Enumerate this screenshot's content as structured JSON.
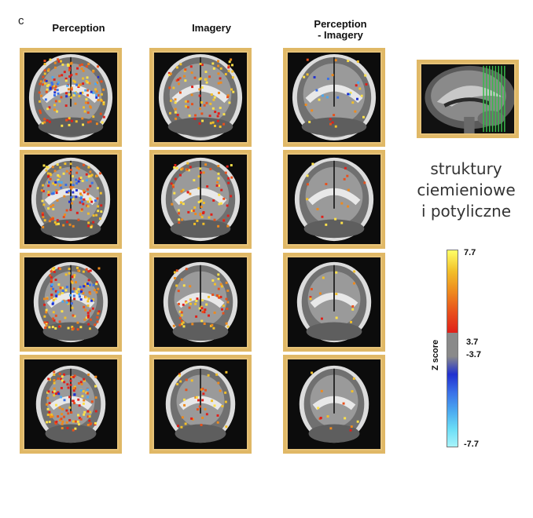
{
  "panel_letter": "c",
  "columns": [
    "Perception",
    "Imagery",
    "Perception\n- Imagery"
  ],
  "side_text": [
    "struktury",
    "ciemieniowe",
    "i potyliczne"
  ],
  "colorbar": {
    "axis_label": "Z score",
    "ticks": [
      "7.7",
      "3.7",
      "-3.7",
      "-7.7"
    ],
    "positive_colors": [
      "#ffff66",
      "#f2c02a",
      "#ee8a1e",
      "#e8501c",
      "#e0201a"
    ],
    "negative_colors": [
      "#2030d0",
      "#3a70e8",
      "#4aa8f0",
      "#6adcf6",
      "#a8f4fb"
    ],
    "gray": "#8a8a8a"
  },
  "colors": {
    "frame": "#e0b866",
    "activation_hot": "#f08a1e",
    "activation_cold": "#3a70e8"
  }
}
